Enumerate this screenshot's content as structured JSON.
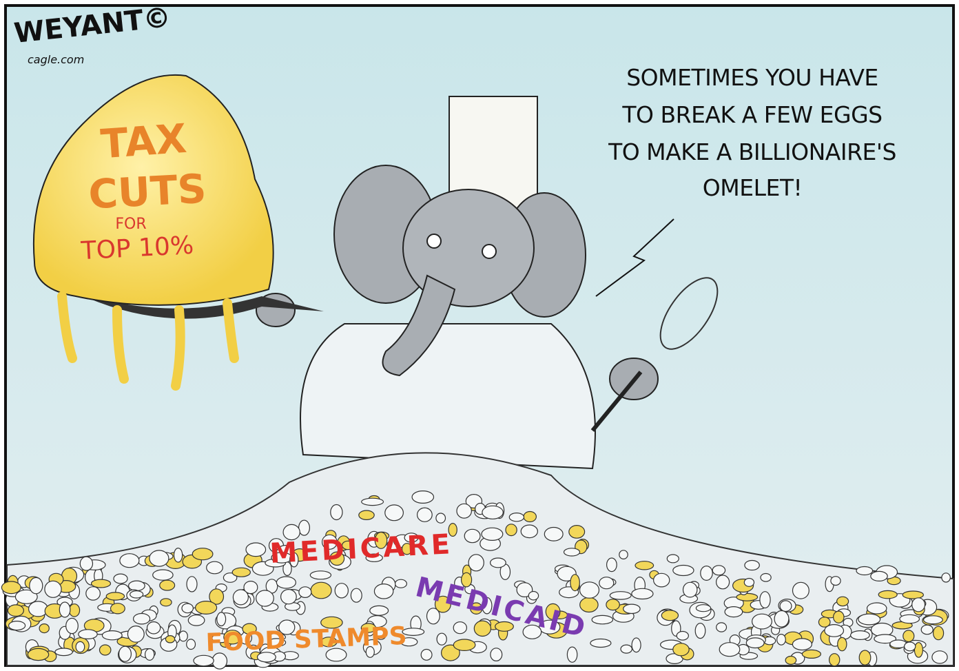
{
  "signature": {
    "name": "WEYANT©",
    "site": "cagle.com"
  },
  "speech_bubble": {
    "lines": [
      "SOMETIMES YOU HAVE",
      "TO BREAK A FEW EGGS",
      "TO MAKE A BILLIONAIRE'S",
      "OMELET!"
    ]
  },
  "omelet": {
    "line1": "TAX",
    "line2": "CUTS",
    "line3": "FOR",
    "line4": "TOP 10%"
  },
  "egg_labels": {
    "medicare": "MEDICARE",
    "medicaid": "MEDICAID",
    "food_stamps": "FOOD STAMPS"
  }
}
